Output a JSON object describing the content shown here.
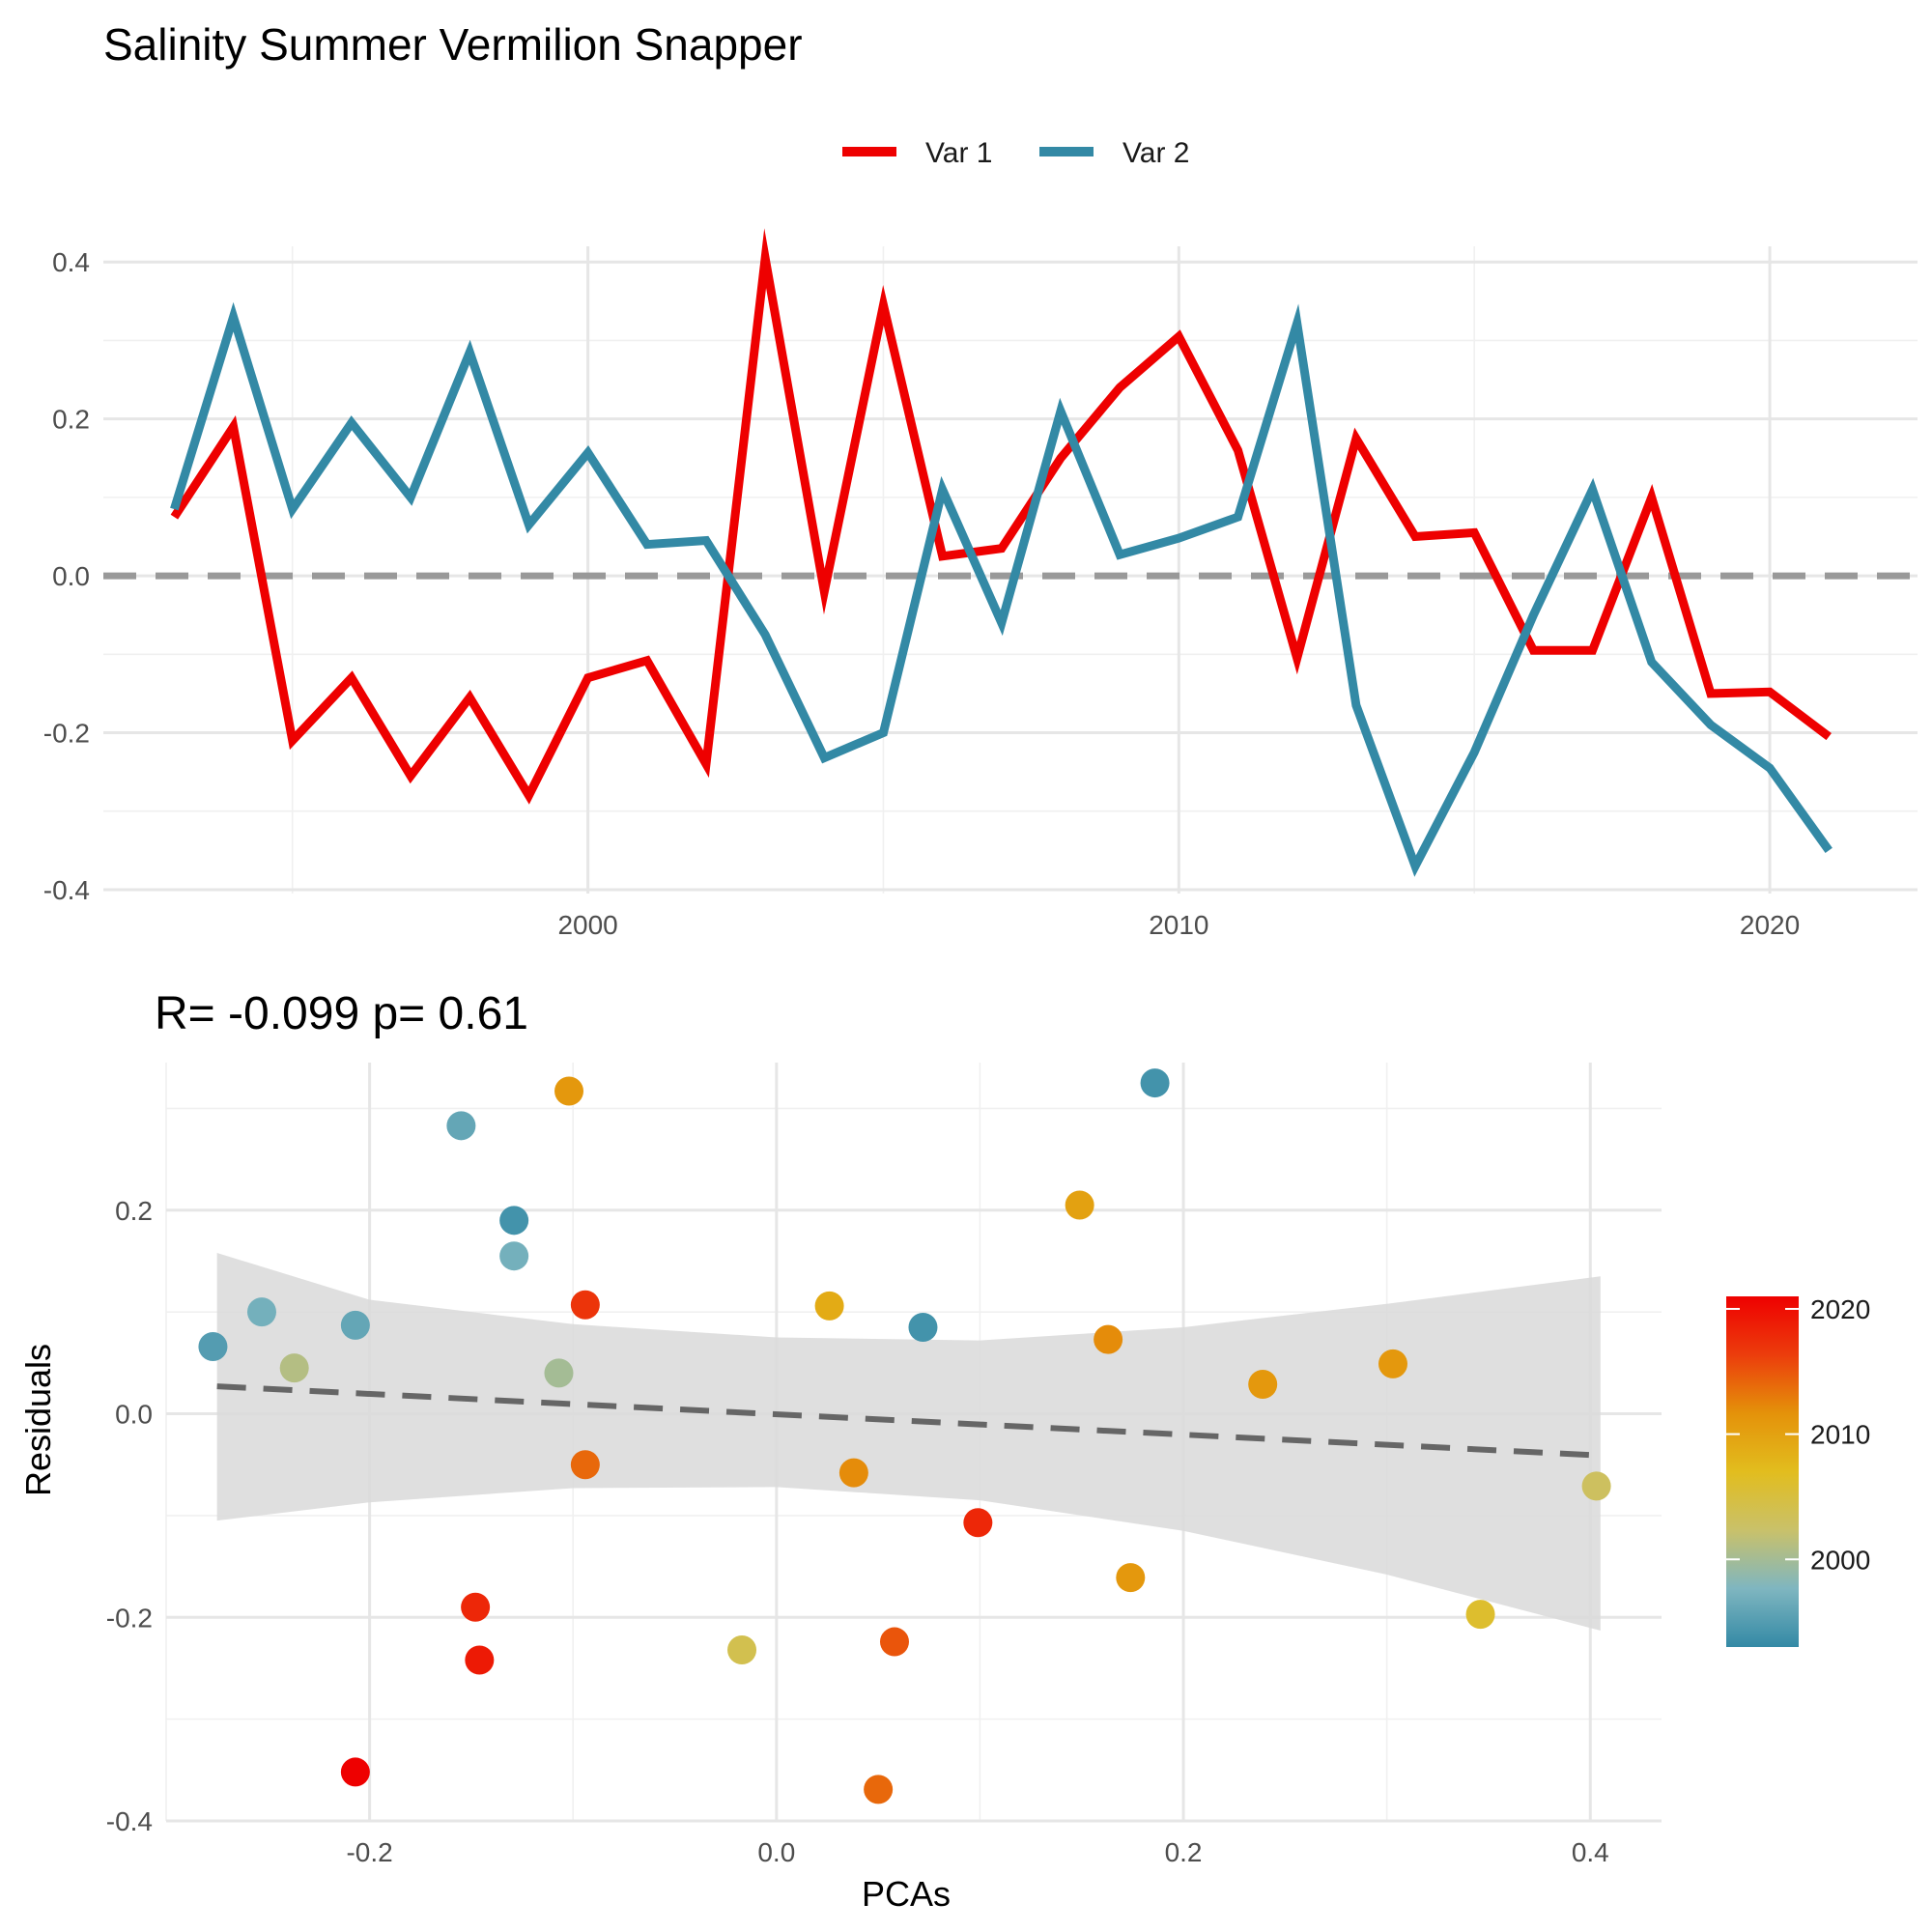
{
  "chart_data": [
    {
      "type": "line",
      "title": "Salinity Summer Vermilion Snapper",
      "xlabel": "",
      "ylabel": "",
      "xlim": [
        1991.8,
        2022.5
      ],
      "ylim": [
        -0.405,
        0.42
      ],
      "x_ticks": [
        2000,
        2010,
        2020
      ],
      "y_ticks": [
        -0.4,
        -0.2,
        0.0,
        0.2,
        0.4
      ],
      "y_tick_labels": [
        "-0.4",
        "-0.2",
        "0.0",
        "0.2",
        "0.4"
      ],
      "reference_line": 0,
      "grid": true,
      "legend": "top",
      "x": [
        1993,
        1994,
        1995,
        1996,
        1997,
        1998,
        1999,
        2000,
        2001,
        2002,
        2003,
        2004,
        2005,
        2006,
        2007,
        2008,
        2009,
        2010,
        2011,
        2012,
        2013,
        2014,
        2015,
        2016,
        2017,
        2018,
        2019,
        2020,
        2021
      ],
      "series": [
        {
          "name": "Var 1",
          "color": "#ee0000",
          "values": [
            0.075,
            0.19,
            -0.21,
            -0.13,
            -0.255,
            -0.155,
            -0.28,
            -0.13,
            -0.108,
            -0.24,
            0.405,
            -0.02,
            0.345,
            0.025,
            0.035,
            0.15,
            0.24,
            0.305,
            0.16,
            -0.105,
            0.175,
            0.05,
            0.055,
            -0.095,
            -0.095,
            0.1,
            -0.15,
            -0.148,
            -0.205
          ]
        },
        {
          "name": "Var 2",
          "color": "#3389a5",
          "values": [
            0.085,
            0.33,
            0.085,
            0.195,
            0.1,
            0.285,
            0.065,
            0.157,
            0.04,
            0.045,
            -0.075,
            -0.232,
            -0.2,
            0.11,
            -0.06,
            0.21,
            0.027,
            0.048,
            0.075,
            0.322,
            -0.165,
            -0.37,
            -0.225,
            -0.05,
            0.11,
            -0.11,
            -0.19,
            -0.245,
            -0.35
          ]
        }
      ]
    },
    {
      "type": "scatter",
      "title": "R= -0.099  p= 0.61",
      "xlabel": "PCAs",
      "ylabel": "Residuals",
      "xlim": [
        -0.3,
        0.435
      ],
      "ylim": [
        -0.4,
        0.345
      ],
      "x_ticks": [
        -0.2,
        0.0,
        0.2,
        0.4
      ],
      "x_tick_labels": [
        "-0.2",
        "0.0",
        "0.2",
        "0.4"
      ],
      "y_ticks": [
        -0.4,
        -0.2,
        0.0,
        0.2
      ],
      "y_tick_labels": [
        "-0.4",
        "-0.2",
        "0.0",
        "0.2"
      ],
      "grid": true,
      "trend_line": {
        "x": [
          -0.275,
          0.405
        ],
        "y": [
          0.027,
          -0.041
        ],
        "style": "dashed",
        "color": "#666666"
      },
      "confidence_band": {
        "x": [
          -0.275,
          -0.2,
          -0.1,
          0.0,
          0.1,
          0.2,
          0.3,
          0.405
        ],
        "lower": [
          -0.105,
          -0.087,
          -0.073,
          -0.072,
          -0.085,
          -0.115,
          -0.158,
          -0.213
        ],
        "upper": [
          0.158,
          0.112,
          0.088,
          0.075,
          0.072,
          0.085,
          0.108,
          0.135
        ],
        "color": "#d9d9d9"
      },
      "points": [
        {
          "x": -0.277,
          "y": 0.066,
          "year": 1995
        },
        {
          "x": -0.253,
          "y": 0.1,
          "year": 1997
        },
        {
          "x": -0.237,
          "y": 0.045,
          "year": 2001
        },
        {
          "x": -0.207,
          "y": 0.087,
          "year": 1996
        },
        {
          "x": -0.207,
          "y": -0.352,
          "year": 2021
        },
        {
          "x": -0.155,
          "y": 0.283,
          "year": 1996
        },
        {
          "x": -0.148,
          "y": -0.19,
          "year": 2018
        },
        {
          "x": -0.146,
          "y": -0.242,
          "year": 2019
        },
        {
          "x": -0.129,
          "y": 0.19,
          "year": 1994
        },
        {
          "x": -0.129,
          "y": 0.155,
          "year": 1997
        },
        {
          "x": -0.107,
          "y": 0.04,
          "year": 2000
        },
        {
          "x": -0.102,
          "y": 0.317,
          "year": 2011
        },
        {
          "x": -0.094,
          "y": 0.107,
          "year": 2017
        },
        {
          "x": -0.094,
          "y": -0.05,
          "year": 2014
        },
        {
          "x": -0.017,
          "y": -0.232,
          "year": 2004
        },
        {
          "x": 0.026,
          "y": 0.106,
          "year": 2009
        },
        {
          "x": 0.038,
          "y": -0.058,
          "year": 2012
        },
        {
          "x": 0.05,
          "y": -0.369,
          "year": 2014
        },
        {
          "x": 0.058,
          "y": -0.224,
          "year": 2015
        },
        {
          "x": 0.072,
          "y": 0.085,
          "year": 1994
        },
        {
          "x": 0.099,
          "y": -0.107,
          "year": 2018
        },
        {
          "x": 0.149,
          "y": 0.205,
          "year": 2010
        },
        {
          "x": 0.163,
          "y": 0.073,
          "year": 2012
        },
        {
          "x": 0.174,
          "y": -0.161,
          "year": 2011
        },
        {
          "x": 0.186,
          "y": 0.325,
          "year": 1994
        },
        {
          "x": 0.239,
          "y": 0.029,
          "year": 2011
        },
        {
          "x": 0.303,
          "y": 0.049,
          "year": 2011
        },
        {
          "x": 0.346,
          "y": -0.197,
          "year": 2006
        },
        {
          "x": 0.403,
          "y": -0.071,
          "year": 2003
        }
      ],
      "colorbar": {
        "range": [
          1993,
          2021
        ],
        "ticks": [
          2000,
          2010,
          2020
        ],
        "stops": [
          "#3389a5",
          "#7fb6c0",
          "#c9c16a",
          "#e2bd1e",
          "#e4920a",
          "#ec3d0c",
          "#ee0000"
        ]
      }
    }
  ]
}
